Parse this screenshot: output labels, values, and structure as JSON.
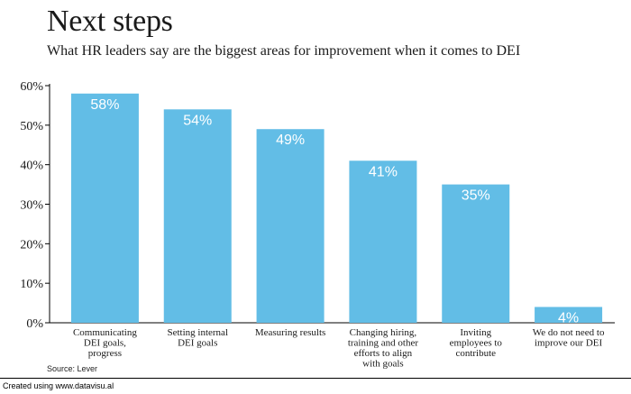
{
  "header": {
    "title": "Next steps",
    "subtitle": "What HR leaders say are the biggest areas for improvement when it comes to DEI"
  },
  "chart_data": {
    "type": "bar",
    "categories": [
      "Communicating DEI goals, progress",
      "Setting internal DEI goals",
      "Measuring results",
      "Changing hiring, training and other efforts to align with goals",
      "Inviting employees to contribute",
      "We do not need to improve our DEI"
    ],
    "values": [
      58,
      54,
      49,
      41,
      35,
      4
    ],
    "data_labels": [
      "58%",
      "54%",
      "49%",
      "41%",
      "35%",
      "4%"
    ],
    "category_label_lines": [
      [
        "Communicating",
        "DEI goals,",
        "progress"
      ],
      [
        "Setting internal",
        "DEI goals"
      ],
      [
        "Measuring results"
      ],
      [
        "Changing hiring,",
        "training and other",
        "efforts to align",
        "with goals"
      ],
      [
        "Inviting",
        "employees to",
        "contribute"
      ],
      [
        "We do not need to",
        "improve our DEI"
      ]
    ],
    "y_ticks": [
      "0%",
      "10%",
      "20%",
      "30%",
      "40%",
      "50%",
      "60%"
    ],
    "ylim": [
      0,
      60
    ],
    "bar_color": "#62bde6",
    "label_color": "#ffffff",
    "grid": false,
    "legend": "none"
  },
  "footer": {
    "source": "Source: Lever",
    "credit": "Created using www.datavisu.al"
  }
}
